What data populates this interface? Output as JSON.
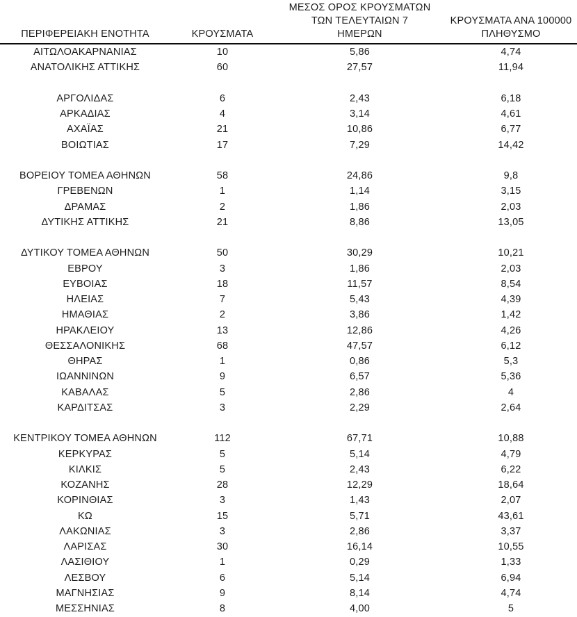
{
  "page": {
    "background_color": "#ffffff",
    "text_color": "#1c1c1c",
    "header_rule_color": "#0c0c0c"
  },
  "table": {
    "headers": {
      "region": "ΠΕΡΙΦΕΡΕΙΑΚΗ ΕΝΟΤΗΤΑ",
      "cases": "ΚΡΟΥΣΜΑΤΑ",
      "avg7": "ΜΕΣΟΣ ΟΡΟΣ ΚΡΟΥΣΜΑΤΩΝ\nΤΩΝ ΤΕΛΕΥΤΑΙΩΝ 7\nΗΜΕΡΩΝ",
      "per100k": "ΚΡΟΥΣΜΑΤΑ ΑΝΑ 100000\nΠΛΗΘΥΣΜΟ"
    },
    "rows": [
      {
        "gap_before": false,
        "region": "ΑΙΤΩΛΟΑΚΑΡΝΑΝΙΑΣ",
        "cases": "10",
        "avg7": "5,86",
        "per100k": "4,74"
      },
      {
        "gap_before": false,
        "region": "ΑΝΑΤΟΛΙΚΗΣ ΑΤΤΙΚΗΣ",
        "cases": "60",
        "avg7": "27,57",
        "per100k": "11,94"
      },
      {
        "gap_before": true,
        "region": "ΑΡΓΟΛΙΔΑΣ",
        "cases": "6",
        "avg7": "2,43",
        "per100k": "6,18"
      },
      {
        "gap_before": false,
        "region": "ΑΡΚΑΔΙΑΣ",
        "cases": "4",
        "avg7": "3,14",
        "per100k": "4,61"
      },
      {
        "gap_before": false,
        "region": "ΑΧΑΪΑΣ",
        "cases": "21",
        "avg7": "10,86",
        "per100k": "6,77"
      },
      {
        "gap_before": false,
        "region": "ΒΟΙΩΤΙΑΣ",
        "cases": "17",
        "avg7": "7,29",
        "per100k": "14,42"
      },
      {
        "gap_before": true,
        "region": "ΒΟΡΕΙΟΥ ΤΟΜΕΑ ΑΘΗΝΩΝ",
        "cases": "58",
        "avg7": "24,86",
        "per100k": "9,8"
      },
      {
        "gap_before": false,
        "region": "ΓΡΕΒΕΝΩΝ",
        "cases": "1",
        "avg7": "1,14",
        "per100k": "3,15"
      },
      {
        "gap_before": false,
        "region": "ΔΡΑΜΑΣ",
        "cases": "2",
        "avg7": "1,86",
        "per100k": "2,03"
      },
      {
        "gap_before": false,
        "region": "ΔΥΤΙΚΗΣ ΑΤΤΙΚΗΣ",
        "cases": "21",
        "avg7": "8,86",
        "per100k": "13,05"
      },
      {
        "gap_before": true,
        "region": "ΔΥΤΙΚΟΥ ΤΟΜΕΑ ΑΘΗΝΩΝ",
        "cases": "50",
        "avg7": "30,29",
        "per100k": "10,21"
      },
      {
        "gap_before": false,
        "region": "ΕΒΡΟΥ",
        "cases": "3",
        "avg7": "1,86",
        "per100k": "2,03"
      },
      {
        "gap_before": false,
        "region": "ΕΥΒΟΙΑΣ",
        "cases": "18",
        "avg7": "11,57",
        "per100k": "8,54"
      },
      {
        "gap_before": false,
        "region": "ΗΛΕΙΑΣ",
        "cases": "7",
        "avg7": "5,43",
        "per100k": "4,39"
      },
      {
        "gap_before": false,
        "region": "ΗΜΑΘΙΑΣ",
        "cases": "2",
        "avg7": "3,86",
        "per100k": "1,42"
      },
      {
        "gap_before": false,
        "region": "ΗΡΑΚΛΕΙΟΥ",
        "cases": "13",
        "avg7": "12,86",
        "per100k": "4,26"
      },
      {
        "gap_before": false,
        "region": "ΘΕΣΣΑΛΟΝΙΚΗΣ",
        "cases": "68",
        "avg7": "47,57",
        "per100k": "6,12"
      },
      {
        "gap_before": false,
        "region": "ΘΗΡΑΣ",
        "cases": "1",
        "avg7": "0,86",
        "per100k": "5,3"
      },
      {
        "gap_before": false,
        "region": "ΙΩΑΝΝΙΝΩΝ",
        "cases": "9",
        "avg7": "6,57",
        "per100k": "5,36"
      },
      {
        "gap_before": false,
        "region": "ΚΑΒΑΛΑΣ",
        "cases": "5",
        "avg7": "2,86",
        "per100k": "4"
      },
      {
        "gap_before": false,
        "region": "ΚΑΡΔΙΤΣΑΣ",
        "cases": "3",
        "avg7": "2,29",
        "per100k": "2,64"
      },
      {
        "gap_before": true,
        "region": "ΚΕΝΤΡΙΚΟΥ ΤΟΜΕΑ ΑΘΗΝΩΝ",
        "cases": "112",
        "avg7": "67,71",
        "per100k": "10,88"
      },
      {
        "gap_before": false,
        "region": "ΚΕΡΚΥΡΑΣ",
        "cases": "5",
        "avg7": "5,14",
        "per100k": "4,79"
      },
      {
        "gap_before": false,
        "region": "ΚΙΛΚΙΣ",
        "cases": "5",
        "avg7": "2,43",
        "per100k": "6,22"
      },
      {
        "gap_before": false,
        "region": "ΚΟΖΑΝΗΣ",
        "cases": "28",
        "avg7": "12,29",
        "per100k": "18,64"
      },
      {
        "gap_before": false,
        "region": "ΚΟΡΙΝΘΙΑΣ",
        "cases": "3",
        "avg7": "1,43",
        "per100k": "2,07"
      },
      {
        "gap_before": false,
        "region": "ΚΩ",
        "cases": "15",
        "avg7": "5,71",
        "per100k": "43,61"
      },
      {
        "gap_before": false,
        "region": "ΛΑΚΩΝΙΑΣ",
        "cases": "3",
        "avg7": "2,86",
        "per100k": "3,37"
      },
      {
        "gap_before": false,
        "region": "ΛΑΡΙΣΑΣ",
        "cases": "30",
        "avg7": "16,14",
        "per100k": "10,55"
      },
      {
        "gap_before": false,
        "region": "ΛΑΣΙΘΙΟΥ",
        "cases": "1",
        "avg7": "0,29",
        "per100k": "1,33"
      },
      {
        "gap_before": false,
        "region": "ΛΕΣΒΟΥ",
        "cases": "6",
        "avg7": "5,14",
        "per100k": "6,94"
      },
      {
        "gap_before": false,
        "region": "ΜΑΓΝΗΣΙΑΣ",
        "cases": "9",
        "avg7": "8,14",
        "per100k": "4,74"
      },
      {
        "gap_before": false,
        "region": "ΜΕΣΣΗΝΙΑΣ",
        "cases": "8",
        "avg7": "4,00",
        "per100k": "5"
      }
    ]
  }
}
